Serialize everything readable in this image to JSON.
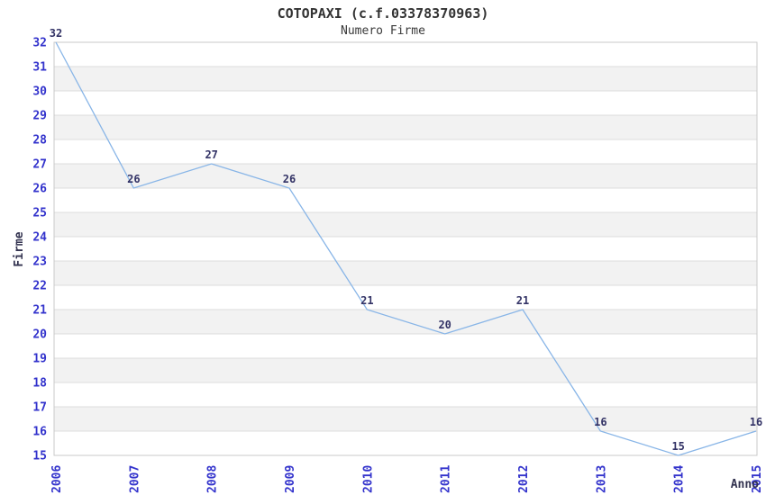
{
  "chart_data": {
    "type": "line",
    "title": "COTOPAXI (c.f.03378370963)",
    "subtitle": "Numero Firme",
    "xlabel": "Anno",
    "ylabel": "Firme",
    "x": [
      2006,
      2007,
      2008,
      2009,
      2010,
      2011,
      2012,
      2013,
      2014,
      2015
    ],
    "values": [
      32,
      26,
      27,
      26,
      21,
      20,
      21,
      16,
      15,
      16
    ],
    "ylim": [
      15,
      32
    ],
    "ytick_step": 1,
    "grid": "horizontal-with-alternating-bands",
    "legend": "none",
    "markers": "none",
    "colors": {
      "line": "#88b5e7",
      "tick_labels": "#3333cc",
      "value_labels": "#333366",
      "title": "#333333",
      "gridline": "#dcdcdc",
      "band": "#f2f2f2",
      "plot_border": "#c9c9c9",
      "background": "#ffffff"
    }
  }
}
